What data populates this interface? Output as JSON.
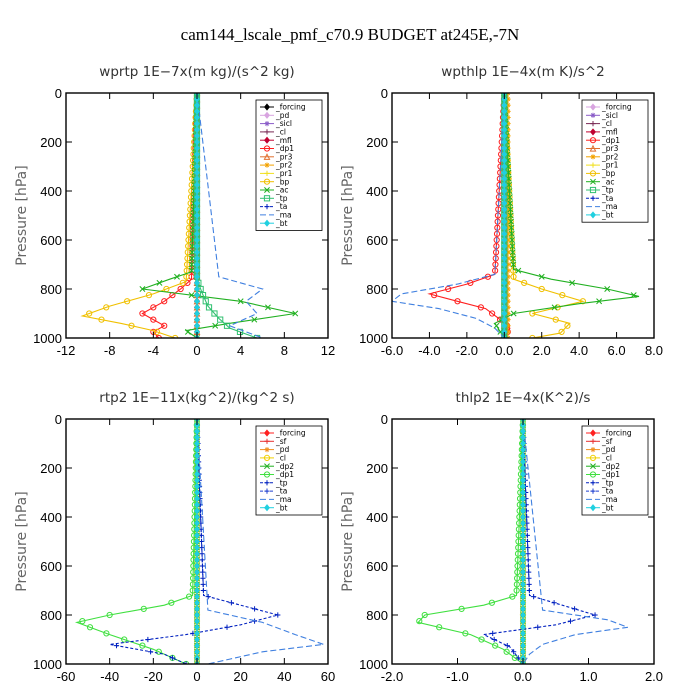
{
  "figure": {
    "title": "cam144_lscale_pmf_c70.9  BUDGET at245E,-7N"
  },
  "chart_data": [
    {
      "type": "line",
      "title": "wprtp   1E−7x(m kg)/(s^2 kg)",
      "ylabel": "Pressure [hPa]",
      "xlim": [
        -12,
        12
      ],
      "ylim": [
        0,
        1000
      ],
      "xticks": [
        -12,
        -8,
        -4,
        0,
        4,
        8,
        12
      ],
      "xtick_labels": [
        "-12",
        "-8",
        "-4",
        "0",
        "4",
        "8",
        "12"
      ],
      "yticks": [
        0,
        200,
        400,
        600,
        800,
        1000
      ],
      "ytick_labels": [
        "0",
        "200",
        "400",
        "600",
        "800",
        "1000"
      ],
      "legend_position": "top-right",
      "series": [
        {
          "name": "_forcing",
          "color": "#000000",
          "marker": "diamond",
          "dash": "",
          "y": [
            0,
            1000
          ],
          "x": [
            0,
            0
          ]
        },
        {
          "name": "_pd",
          "color": "#d8a4e0",
          "marker": "diamond",
          "dash": "",
          "y": [
            0,
            1000
          ],
          "x": [
            0,
            0
          ]
        },
        {
          "name": "_sicl",
          "color": "#8a5cc8",
          "marker": "star",
          "dash": "",
          "y": [
            0,
            1000
          ],
          "x": [
            0,
            0
          ]
        },
        {
          "name": "_cl",
          "color": "#7a2a55",
          "marker": "plus",
          "dash": "",
          "y": [
            0,
            1000
          ],
          "x": [
            0,
            0
          ]
        },
        {
          "name": "_mfl",
          "color": "#c00030",
          "marker": "diamond",
          "dash": "",
          "y": [
            0,
            1000
          ],
          "x": [
            0,
            0
          ]
        },
        {
          "name": "_dp1",
          "color": "#ff1f1f",
          "marker": "circle",
          "dash": "",
          "y": [
            0,
            760,
            800,
            850,
            900,
            950,
            975,
            1000
          ],
          "x": [
            0,
            -0.5,
            -1.5,
            -3,
            -5,
            -3,
            -4,
            -3.5
          ]
        },
        {
          "name": "_pr3",
          "color": "#e07030",
          "marker": "tri",
          "dash": "",
          "y": [
            0,
            1000
          ],
          "x": [
            0,
            0
          ]
        },
        {
          "name": "_pr2",
          "color": "#f3a200",
          "marker": "star",
          "dash": "",
          "y": [
            0,
            1000
          ],
          "x": [
            0,
            0
          ]
        },
        {
          "name": "_pr1",
          "color": "#f0e020",
          "marker": "plus",
          "dash": "",
          "y": [
            0,
            1000
          ],
          "x": [
            0,
            0
          ]
        },
        {
          "name": "_bp",
          "color": "#f0c000",
          "marker": "circle",
          "dash": "",
          "y": [
            0,
            770,
            820,
            870,
            910,
            940,
            970,
            1000
          ],
          "x": [
            0,
            -1,
            -4,
            -8,
            -10.5,
            -7,
            -4,
            -2
          ]
        },
        {
          "name": "_ac",
          "color": "#20b020",
          "marker": "cross",
          "dash": "",
          "y": [
            0,
            730,
            760,
            800,
            850,
            900,
            940,
            970,
            1000
          ],
          "x": [
            0,
            -0.5,
            -2.5,
            -5,
            4,
            9,
            3,
            -1,
            0
          ]
        },
        {
          "name": "_tp",
          "color": "#30c070",
          "marker": "square",
          "dash": "",
          "y": [
            0,
            760,
            820,
            870,
            920,
            960,
            1000
          ],
          "x": [
            0,
            0,
            0.5,
            1,
            2,
            3,
            5.5
          ]
        },
        {
          "name": "_ta",
          "color": "#0020c0",
          "marker": "plus",
          "dash": "3,2",
          "y": [
            0,
            1000
          ],
          "x": [
            0,
            0
          ]
        },
        {
          "name": "_ma",
          "color": "#4080e0",
          "marker": "none",
          "dash": "6,3",
          "y": [
            0,
            750,
            800,
            850,
            900,
            950,
            1000
          ],
          "x": [
            0,
            2,
            6,
            4.5,
            5.5,
            3,
            6
          ]
        },
        {
          "name": "_bt",
          "color": "#20d0e0",
          "marker": "diamond",
          "dash": "",
          "y": [
            0,
            1000
          ],
          "x": [
            0,
            0
          ]
        }
      ]
    },
    {
      "type": "line",
      "title": "wpthlp   1E−4x(m K)/s^2",
      "ylabel": "Pressure [hPa]",
      "xlim": [
        -6,
        8
      ],
      "ylim": [
        0,
        1000
      ],
      "xticks": [
        -6,
        -4,
        -2,
        0,
        2,
        4,
        6,
        8
      ],
      "xtick_labels": [
        "-6.0",
        "-4.0",
        "-2.0",
        "0.0",
        "2.0",
        "4.0",
        "6.0",
        "8.0"
      ],
      "yticks": [
        0,
        200,
        400,
        600,
        800,
        1000
      ],
      "ytick_labels": [
        "0",
        "200",
        "400",
        "600",
        "800",
        "1000"
      ],
      "legend_position": "top-right",
      "series": [
        {
          "name": "_forcing",
          "color": "#d8a4e0",
          "marker": "diamond",
          "dash": "",
          "y": [
            0,
            1000
          ],
          "x": [
            0,
            0
          ]
        },
        {
          "name": "_sicl",
          "color": "#8a5cc8",
          "marker": "star",
          "dash": "",
          "y": [
            0,
            1000
          ],
          "x": [
            0.1,
            0.1
          ]
        },
        {
          "name": "_cl",
          "color": "#7a2a55",
          "marker": "plus",
          "dash": "",
          "y": [
            0,
            1000
          ],
          "x": [
            0,
            0
          ]
        },
        {
          "name": "_mfl",
          "color": "#c00030",
          "marker": "diamond",
          "dash": "",
          "y": [
            0,
            1000
          ],
          "x": [
            0,
            0
          ]
        },
        {
          "name": "_dp1",
          "color": "#ff1f1f",
          "marker": "circle",
          "dash": "",
          "y": [
            0,
            740,
            780,
            820,
            850,
            880,
            920,
            960,
            1000
          ],
          "x": [
            0,
            -0.5,
            -2,
            -4,
            -2.5,
            -1,
            -0.3,
            0.3,
            0
          ]
        },
        {
          "name": "_pr3",
          "color": "#e07030",
          "marker": "tri",
          "dash": "",
          "y": [
            0,
            1000
          ],
          "x": [
            0,
            0
          ]
        },
        {
          "name": "_pr2",
          "color": "#f3a200",
          "marker": "star",
          "dash": "",
          "y": [
            0,
            1000
          ],
          "x": [
            0.2,
            0.2
          ]
        },
        {
          "name": "_pr1",
          "color": "#f0e020",
          "marker": "plus",
          "dash": "",
          "y": [
            0,
            1000
          ],
          "x": [
            0,
            0
          ]
        },
        {
          "name": "_bp",
          "color": "#f0c000",
          "marker": "circle",
          "dash": "",
          "y": [
            0,
            760,
            800,
            850,
            900,
            940,
            980,
            1000
          ],
          "x": [
            0,
            0.5,
            2,
            4.2,
            1.5,
            3.5,
            3,
            1.5
          ]
        },
        {
          "name": "_ac",
          "color": "#20b020",
          "marker": "cross",
          "dash": "",
          "y": [
            0,
            720,
            760,
            800,
            830,
            860,
            900,
            940,
            1000
          ],
          "x": [
            0,
            0.5,
            2.5,
            5.5,
            7.2,
            4,
            0.5,
            -0.5,
            0
          ]
        },
        {
          "name": "_tp",
          "color": "#30c070",
          "marker": "square",
          "dash": "",
          "y": [
            0,
            1000
          ],
          "x": [
            0,
            0
          ]
        },
        {
          "name": "_ta",
          "color": "#0020c0",
          "marker": "plus",
          "dash": "3,2",
          "y": [
            0,
            1000
          ],
          "x": [
            0,
            0
          ]
        },
        {
          "name": "_ma",
          "color": "#4080e0",
          "marker": "none",
          "dash": "6,3",
          "y": [
            0,
            740,
            780,
            820,
            850,
            880,
            920,
            960,
            1000
          ],
          "x": [
            0,
            -0.5,
            -2.5,
            -5.5,
            -6,
            -3.5,
            -1.5,
            -0.5,
            0
          ]
        },
        {
          "name": "_bt",
          "color": "#20d0e0",
          "marker": "diamond",
          "dash": "",
          "y": [
            0,
            1000
          ],
          "x": [
            0,
            0
          ]
        }
      ]
    },
    {
      "type": "line",
      "title": "rtp2   1E−11x(kg^2)/(kg^2 s)",
      "ylabel": "Pressure [hPa]",
      "xlim": [
        -60,
        60
      ],
      "ylim": [
        0,
        1000
      ],
      "xticks": [
        -60,
        -40,
        -20,
        0,
        20,
        40,
        60
      ],
      "xtick_labels": [
        "-60",
        "-40",
        "-20",
        "0",
        "20",
        "40",
        "60"
      ],
      "yticks": [
        0,
        200,
        400,
        600,
        800,
        1000
      ],
      "ytick_labels": [
        "0",
        "200",
        "400",
        "600",
        "800",
        "1000"
      ],
      "legend_position": "top-right",
      "series": [
        {
          "name": "_forcing",
          "color": "#ff2020",
          "marker": "diamond",
          "dash": "",
          "y": [
            0,
            1000
          ],
          "x": [
            0,
            0
          ]
        },
        {
          "name": "_sf",
          "color": "#e83030",
          "marker": "plus",
          "dash": "",
          "y": [
            0,
            1000
          ],
          "x": [
            0,
            0
          ]
        },
        {
          "name": "_pd",
          "color": "#f09020",
          "marker": "star",
          "dash": "",
          "y": [
            0,
            1000
          ],
          "x": [
            0,
            0
          ]
        },
        {
          "name": "_cl",
          "color": "#f0d000",
          "marker": "circle",
          "dash": "",
          "y": [
            0,
            1000
          ],
          "x": [
            0,
            0
          ]
        },
        {
          "name": "_dp2",
          "color": "#20b020",
          "marker": "cross",
          "dash": "",
          "y": [
            0,
            1000
          ],
          "x": [
            0,
            0
          ]
        },
        {
          "name": "_dp1",
          "color": "#40e040",
          "marker": "circle",
          "dash": "",
          "y": [
            0,
            720,
            760,
            800,
            830,
            880,
            940,
            980,
            1000
          ],
          "x": [
            0,
            -2,
            -15,
            -40,
            -55,
            -40,
            -20,
            -10,
            -5
          ]
        },
        {
          "name": "_tp",
          "color": "#0020c0",
          "marker": "plus",
          "dash": "3,2",
          "y": [
            0,
            720,
            760,
            800,
            840,
            880,
            920,
            960,
            1000
          ],
          "x": [
            0,
            3,
            20,
            37,
            20,
            -5,
            -40,
            -15,
            -5
          ]
        },
        {
          "name": "_ta",
          "color": "#2040d0",
          "marker": "plus",
          "dash": "3,2",
          "y": [
            0,
            1000
          ],
          "x": [
            0,
            0
          ]
        },
        {
          "name": "_ma",
          "color": "#4080e0",
          "marker": "none",
          "dash": "6,3",
          "y": [
            0,
            780,
            830,
            880,
            920,
            950,
            980,
            1000
          ],
          "x": [
            0,
            5,
            30,
            45,
            58,
            30,
            15,
            5
          ]
        },
        {
          "name": "_bt",
          "color": "#20d0e0",
          "marker": "diamond",
          "dash": "",
          "y": [
            0,
            1000
          ],
          "x": [
            0,
            0
          ]
        }
      ]
    },
    {
      "type": "line",
      "title": "thlp2   1E−4x(K^2)/s",
      "ylabel": "Pressure [hPa]",
      "xlim": [
        -2,
        2
      ],
      "ylim": [
        0,
        1000
      ],
      "xticks": [
        -2,
        -1,
        0,
        1,
        2
      ],
      "xtick_labels": [
        "-2.0",
        "-1.0",
        "0.0",
        "1.0",
        "2.0"
      ],
      "yticks": [
        0,
        200,
        400,
        600,
        800,
        1000
      ],
      "ytick_labels": [
        "0",
        "200",
        "400",
        "600",
        "800",
        "1000"
      ],
      "legend_position": "top-right",
      "series": [
        {
          "name": "_forcing",
          "color": "#ff2020",
          "marker": "diamond",
          "dash": "",
          "y": [
            0,
            1000
          ],
          "x": [
            0,
            0
          ]
        },
        {
          "name": "_sf",
          "color": "#e83030",
          "marker": "plus",
          "dash": "",
          "y": [
            0,
            1000
          ],
          "x": [
            0,
            0
          ]
        },
        {
          "name": "_pd",
          "color": "#f09020",
          "marker": "star",
          "dash": "",
          "y": [
            0,
            1000
          ],
          "x": [
            0,
            0
          ]
        },
        {
          "name": "_cl",
          "color": "#f0d000",
          "marker": "circle",
          "dash": "",
          "y": [
            0,
            1000
          ],
          "x": [
            0,
            0
          ]
        },
        {
          "name": "_dp2",
          "color": "#20b020",
          "marker": "cross",
          "dash": "",
          "y": [
            0,
            1000
          ],
          "x": [
            0,
            0
          ]
        },
        {
          "name": "_dp1",
          "color": "#40e040",
          "marker": "circle",
          "dash": "",
          "y": [
            0,
            720,
            760,
            800,
            830,
            880,
            940,
            1000
          ],
          "x": [
            0,
            -0.1,
            -0.6,
            -1.5,
            -1.6,
            -0.8,
            -0.3,
            0
          ]
        },
        {
          "name": "_tp",
          "color": "#0020c0",
          "marker": "plus",
          "dash": "3,2",
          "y": [
            0,
            720,
            760,
            800,
            840,
            880,
            930,
            1000
          ],
          "x": [
            0,
            0.1,
            0.6,
            1.1,
            0.5,
            -0.6,
            -0.2,
            0
          ]
        },
        {
          "name": "_ta",
          "color": "#2040d0",
          "marker": "plus",
          "dash": "3,2",
          "y": [
            0,
            1000
          ],
          "x": [
            0,
            0
          ]
        },
        {
          "name": "_ma",
          "color": "#4080e0",
          "marker": "none",
          "dash": "6,3",
          "y": [
            0,
            780,
            820,
            850,
            880,
            920,
            960,
            1000
          ],
          "x": [
            0,
            0.3,
            1.3,
            1.6,
            0.8,
            0.3,
            0.1,
            0
          ]
        },
        {
          "name": "_bt",
          "color": "#20d0e0",
          "marker": "diamond",
          "dash": "",
          "y": [
            0,
            1000
          ],
          "x": [
            0,
            0
          ]
        }
      ]
    }
  ]
}
